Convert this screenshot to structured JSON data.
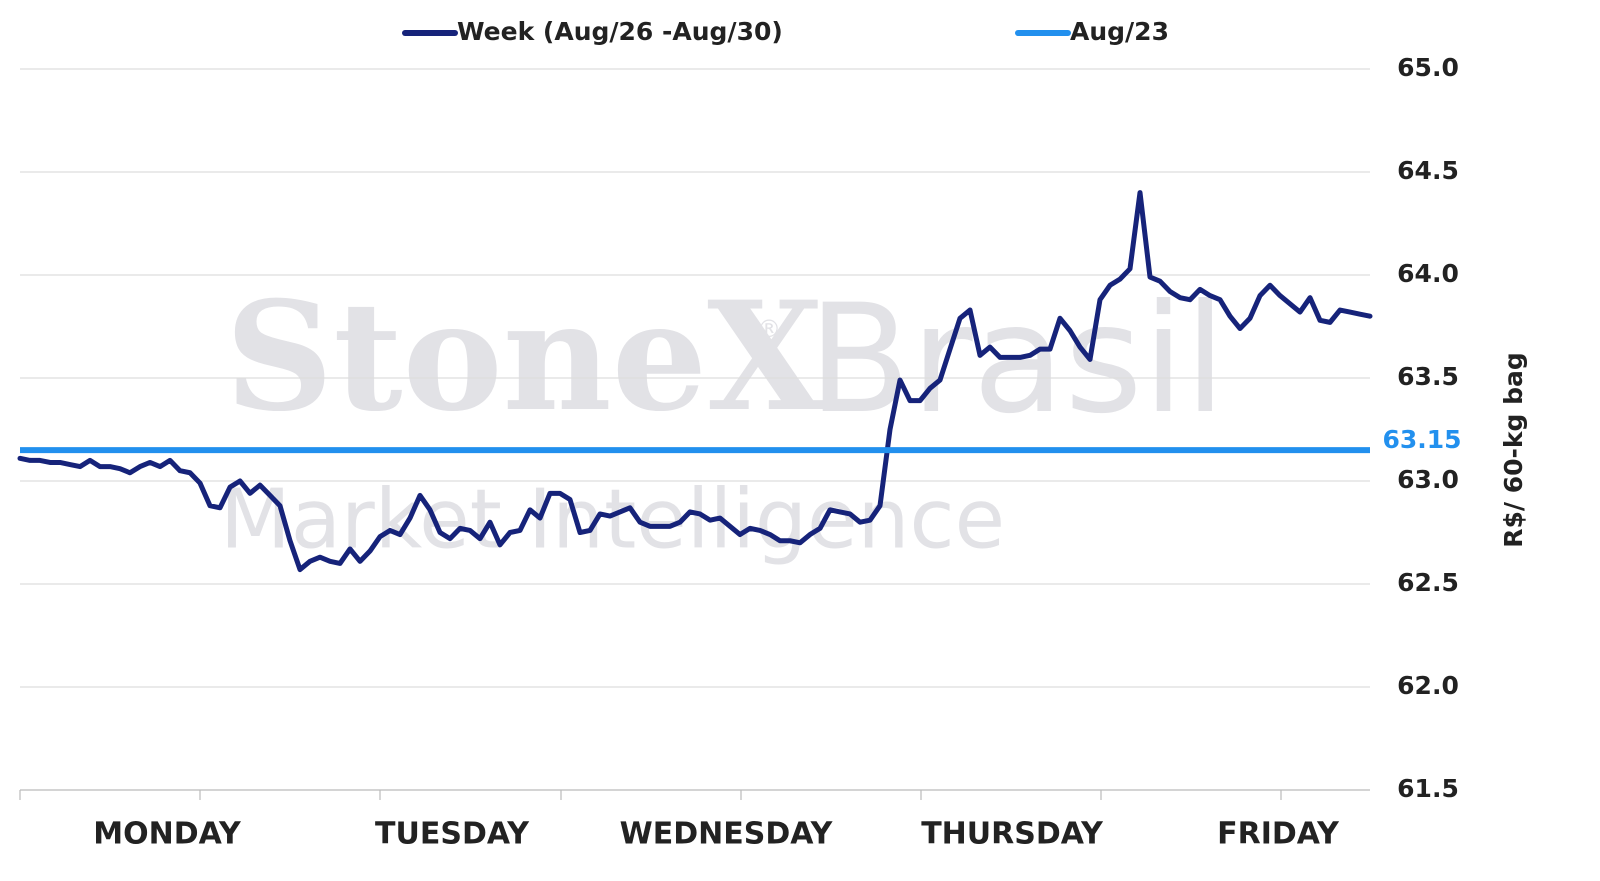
{
  "chart_data": {
    "type": "line",
    "watermark": [
      "StoneX",
      "®",
      "Brasil",
      "Market Intelligence"
    ],
    "y_axis_label": "R$/ 60-kg bag",
    "ylim": [
      61.5,
      65.0
    ],
    "yticks": [
      {
        "value": 61.5,
        "label": "61.5"
      },
      {
        "value": 62.0,
        "label": "62.0"
      },
      {
        "value": 62.5,
        "label": "62.5"
      },
      {
        "value": 63.0,
        "label": "63.0"
      },
      {
        "value": 63.5,
        "label": "63.5"
      },
      {
        "value": 64.0,
        "label": "64.0"
      },
      {
        "value": 64.5,
        "label": "64.5"
      },
      {
        "value": 65.0,
        "label": "65.0"
      }
    ],
    "xlim": [
      0,
      135
    ],
    "xticks": [
      {
        "value": 14.7,
        "label": "MONDAY"
      },
      {
        "value": 43.2,
        "label": "TUESDAY"
      },
      {
        "value": 70.6,
        "label": "WEDNESDAY"
      },
      {
        "value": 99.2,
        "label": "THURSDAY"
      },
      {
        "value": 125.8,
        "label": "FRIDAY"
      }
    ],
    "xtick_marks": [
      0,
      18,
      36,
      54.1,
      72.1,
      90.1,
      108.1,
      126.1
    ],
    "grid": true,
    "legend": "top",
    "series": [
      {
        "name": "Week (Aug/26 -Aug/30)",
        "color": "#16237a",
        "values": [
          63.11,
          63.1,
          63.1,
          63.09,
          63.09,
          63.08,
          63.07,
          63.1,
          63.07,
          63.07,
          63.06,
          63.04,
          63.07,
          63.09,
          63.07,
          63.1,
          63.05,
          63.04,
          62.99,
          62.88,
          62.87,
          62.97,
          63.0,
          62.94,
          62.98,
          62.93,
          62.88,
          62.71,
          62.57,
          62.61,
          62.63,
          62.61,
          62.6,
          62.67,
          62.61,
          62.66,
          62.73,
          62.76,
          62.74,
          62.82,
          62.93,
          62.86,
          62.75,
          62.72,
          62.77,
          62.76,
          62.72,
          62.8,
          62.69,
          62.75,
          62.76,
          62.86,
          62.82,
          62.94,
          62.94,
          62.91,
          62.75,
          62.76,
          62.84,
          62.83,
          62.85,
          62.87,
          62.8,
          62.78,
          62.78,
          62.78,
          62.8,
          62.85,
          62.84,
          62.81,
          62.82,
          62.78,
          62.74,
          62.77,
          62.76,
          62.74,
          62.71,
          62.71,
          62.7,
          62.74,
          62.77,
          62.86,
          62.85,
          62.84,
          62.8,
          62.81,
          62.88,
          63.25,
          63.49,
          63.39,
          63.39,
          63.45,
          63.49,
          63.64,
          63.79,
          63.83,
          63.61,
          63.65,
          63.6,
          63.6,
          63.6,
          63.61,
          63.64,
          63.64,
          63.79,
          63.73,
          63.65,
          63.59,
          63.88,
          63.95,
          63.98,
          64.03,
          64.4,
          63.99,
          63.97,
          63.92,
          63.89,
          63.88,
          63.93,
          63.9,
          63.88,
          63.8,
          63.74,
          63.79,
          63.9,
          63.95,
          63.9,
          63.86,
          63.82,
          63.89,
          63.78,
          63.77,
          63.83,
          63.82,
          63.81,
          63.8
        ]
      },
      {
        "name": "Aug/23",
        "color": "#2290ee",
        "values": [
          63.15
        ]
      }
    ]
  }
}
